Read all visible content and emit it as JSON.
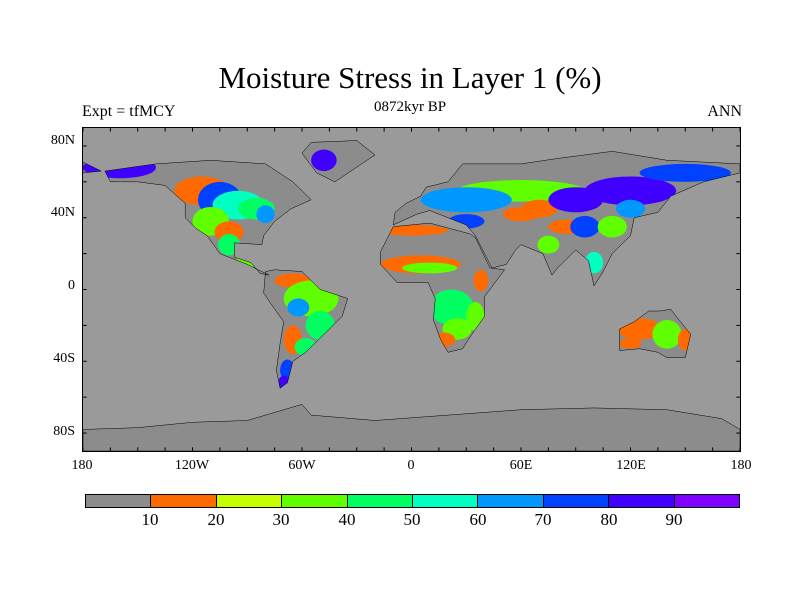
{
  "title": "Moisture Stress in Layer 1 (%)",
  "subtitle_left": "Expt = tfMCY",
  "subtitle_center": "0872kyr BP",
  "subtitle_right": "ANN",
  "lat_labels": [
    "80N",
    "40N",
    "0",
    "40S",
    "80S"
  ],
  "lon_labels": [
    "180",
    "120W",
    "60W",
    "0",
    "60E",
    "120E",
    "180"
  ],
  "colorbar": {
    "labels": [
      "10",
      "20",
      "30",
      "40",
      "50",
      "60",
      "70",
      "80",
      "90"
    ],
    "colors": [
      "#8c8c8c",
      "#ff6a00",
      "#c8ff00",
      "#60ff00",
      "#00ff60",
      "#00ffc0",
      "#0098ff",
      "#0040ff",
      "#4000ff",
      "#8000ff"
    ]
  },
  "ocean_color": "#9a9a9a"
}
